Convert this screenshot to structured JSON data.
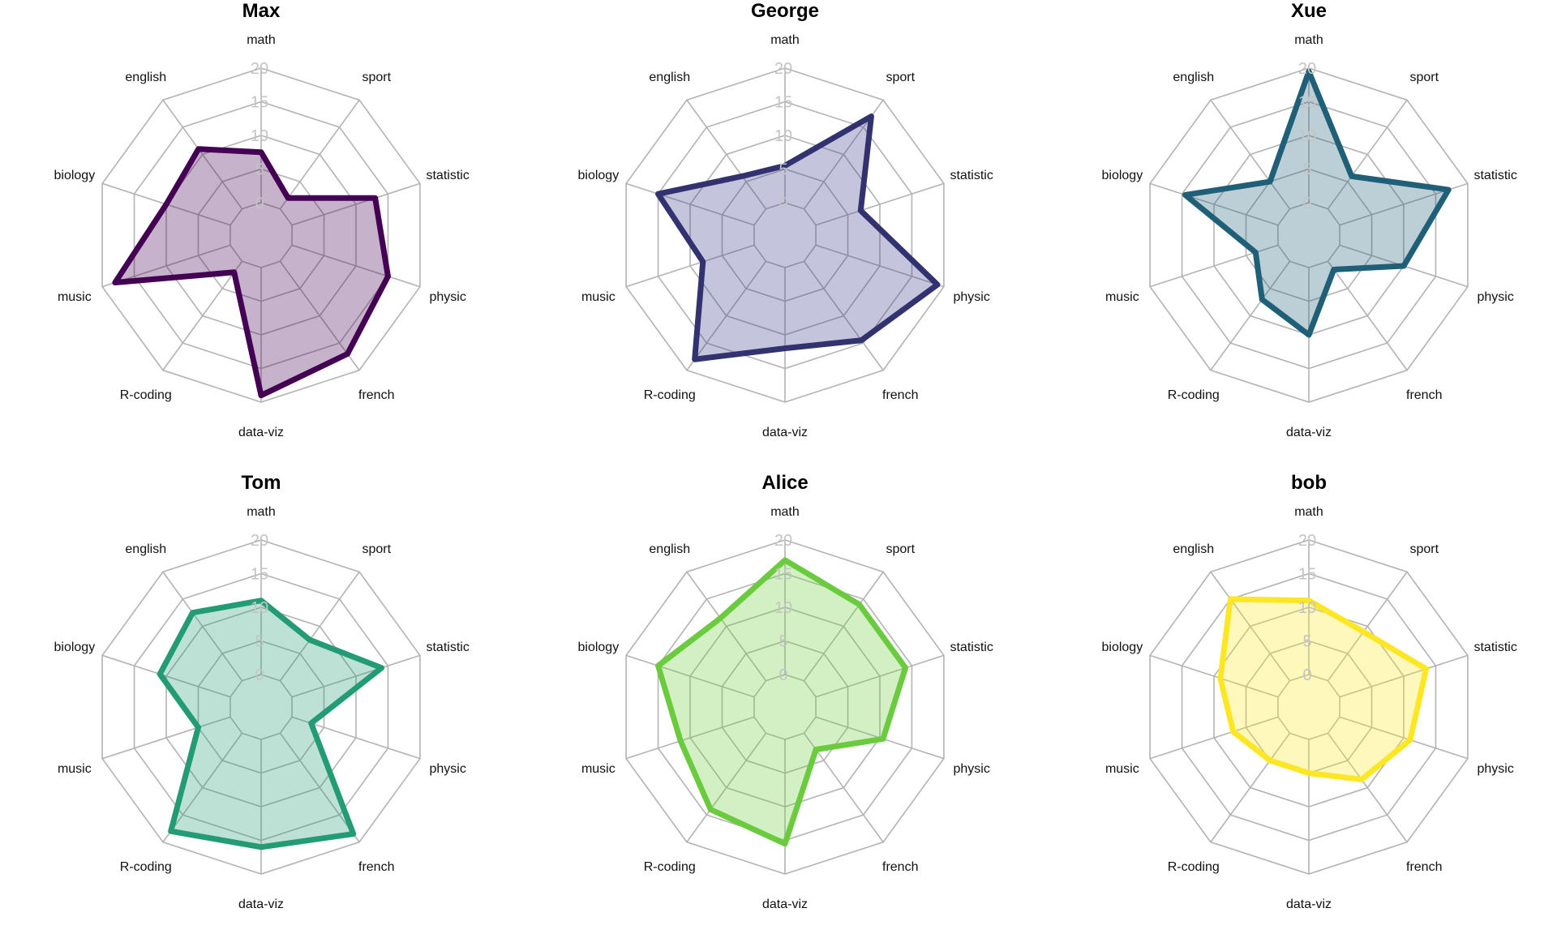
{
  "chart_data": {
    "type": "radar",
    "axes": [
      "math",
      "sport",
      "statistic",
      "physic",
      "french",
      "data-viz",
      "R-coding",
      "music",
      "biology",
      "english"
    ],
    "ticks": [
      "0",
      "5",
      "10",
      "15",
      "20"
    ],
    "range": [
      0,
      20
    ],
    "charts": [
      {
        "title": "Max",
        "color": "#440154",
        "fill": "rgba(68,1,84,0.30)",
        "values": [
          7.5,
          2,
          13,
          15,
          17,
          19,
          2,
          18,
          10,
          11
        ]
      },
      {
        "title": "George",
        "color": "#31326F",
        "fill": "rgba(59,60,140,0.30)",
        "values": [
          5.5,
          17,
          7,
          19,
          14.5,
          12,
          18,
          8,
          15,
          6
        ]
      },
      {
        "title": "Xue",
        "color": "#1F6078",
        "fill": "rgba(33,96,120,0.30)",
        "values": [
          19.5,
          6,
          17,
          10,
          1.5,
          10,
          7,
          3.5,
          14.5,
          5
        ]
      },
      {
        "title": "Tom",
        "color": "#239B74",
        "fill": "rgba(35,155,116,0.30)",
        "values": [
          11,
          7.5,
          14,
          3,
          18.5,
          16,
          18,
          5,
          11,
          12.5
        ]
      },
      {
        "title": "Alice",
        "color": "#6ACB3F",
        "fill": "rgba(110,205,60,0.30)",
        "values": [
          17,
          14,
          14,
          10.5,
          3,
          15.5,
          14,
          11.5,
          15,
          11.5
        ]
      },
      {
        "title": "bob",
        "color": "#FDE725",
        "fill": "rgba(253,231,37,0.30)",
        "values": [
          11,
          9,
          13.5,
          11,
          8.5,
          5,
          5,
          7,
          9,
          15
        ]
      }
    ]
  }
}
